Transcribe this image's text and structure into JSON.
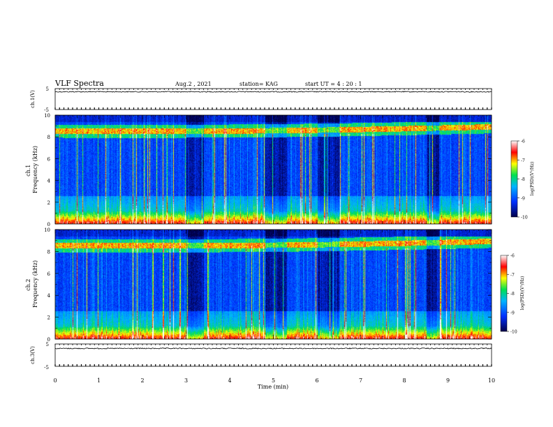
{
  "header": {
    "title": "VLF Spectra",
    "date": "Aug.2 , 2021",
    "station": "station= KAG",
    "start": "start UT = 4 : 20 : 1"
  },
  "chart_data": [
    {
      "id": "ch1_waveform",
      "type": "line",
      "ylabel": "ch.1(V)",
      "yticks": [
        "5",
        "-5"
      ],
      "ylim": [
        -5,
        5
      ],
      "baseline": 3.5,
      "xlim": [
        0,
        10
      ]
    },
    {
      "id": "ch1_spectrogram",
      "type": "heatmap",
      "ylabel": "ch.1 Frequency (kHz)",
      "yticks": [
        "0",
        "2",
        "4",
        "6",
        "8",
        "10"
      ],
      "ylim": [
        0,
        10
      ],
      "xlim": [
        0,
        10
      ],
      "band_khz": [
        8.3,
        8.8
      ],
      "colorbar": {
        "label": "log(PSD)(V²/Hz)",
        "ticks": [
          "-6",
          "-7",
          "-8",
          "-9",
          "-10"
        ],
        "range": [
          -10,
          -6
        ]
      }
    },
    {
      "id": "ch2_spectrogram",
      "type": "heatmap",
      "ylabel": "ch.2 Frequency (kHz)",
      "yticks": [
        "0",
        "2",
        "4",
        "6",
        "8",
        "10"
      ],
      "ylim": [
        0,
        10
      ],
      "xlim": [
        0,
        10
      ],
      "band_khz": [
        8.3,
        8.8
      ],
      "colorbar": {
        "label": "log(PSD)(V²/Hz)",
        "ticks": [
          "-6",
          "-7",
          "-8",
          "-9",
          "-10"
        ],
        "range": [
          -10,
          -6
        ]
      }
    },
    {
      "id": "ch3_waveform",
      "type": "line",
      "ylabel": "ch.3(V)",
      "yticks": [
        "5",
        "-5"
      ],
      "ylim": [
        -5,
        5
      ],
      "baseline": 3.0,
      "xlim": [
        0,
        10
      ],
      "xlabel": "Time (min)",
      "xticks": [
        "0",
        "1",
        "2",
        "3",
        "4",
        "5",
        "6",
        "7",
        "8",
        "9",
        "10"
      ]
    }
  ],
  "colors": {
    "dark": "#00004a",
    "blue": "#0030ff",
    "cyan": "#00b4ff",
    "green": "#00e050",
    "yellow": "#ffff00",
    "red": "#ff0000"
  }
}
